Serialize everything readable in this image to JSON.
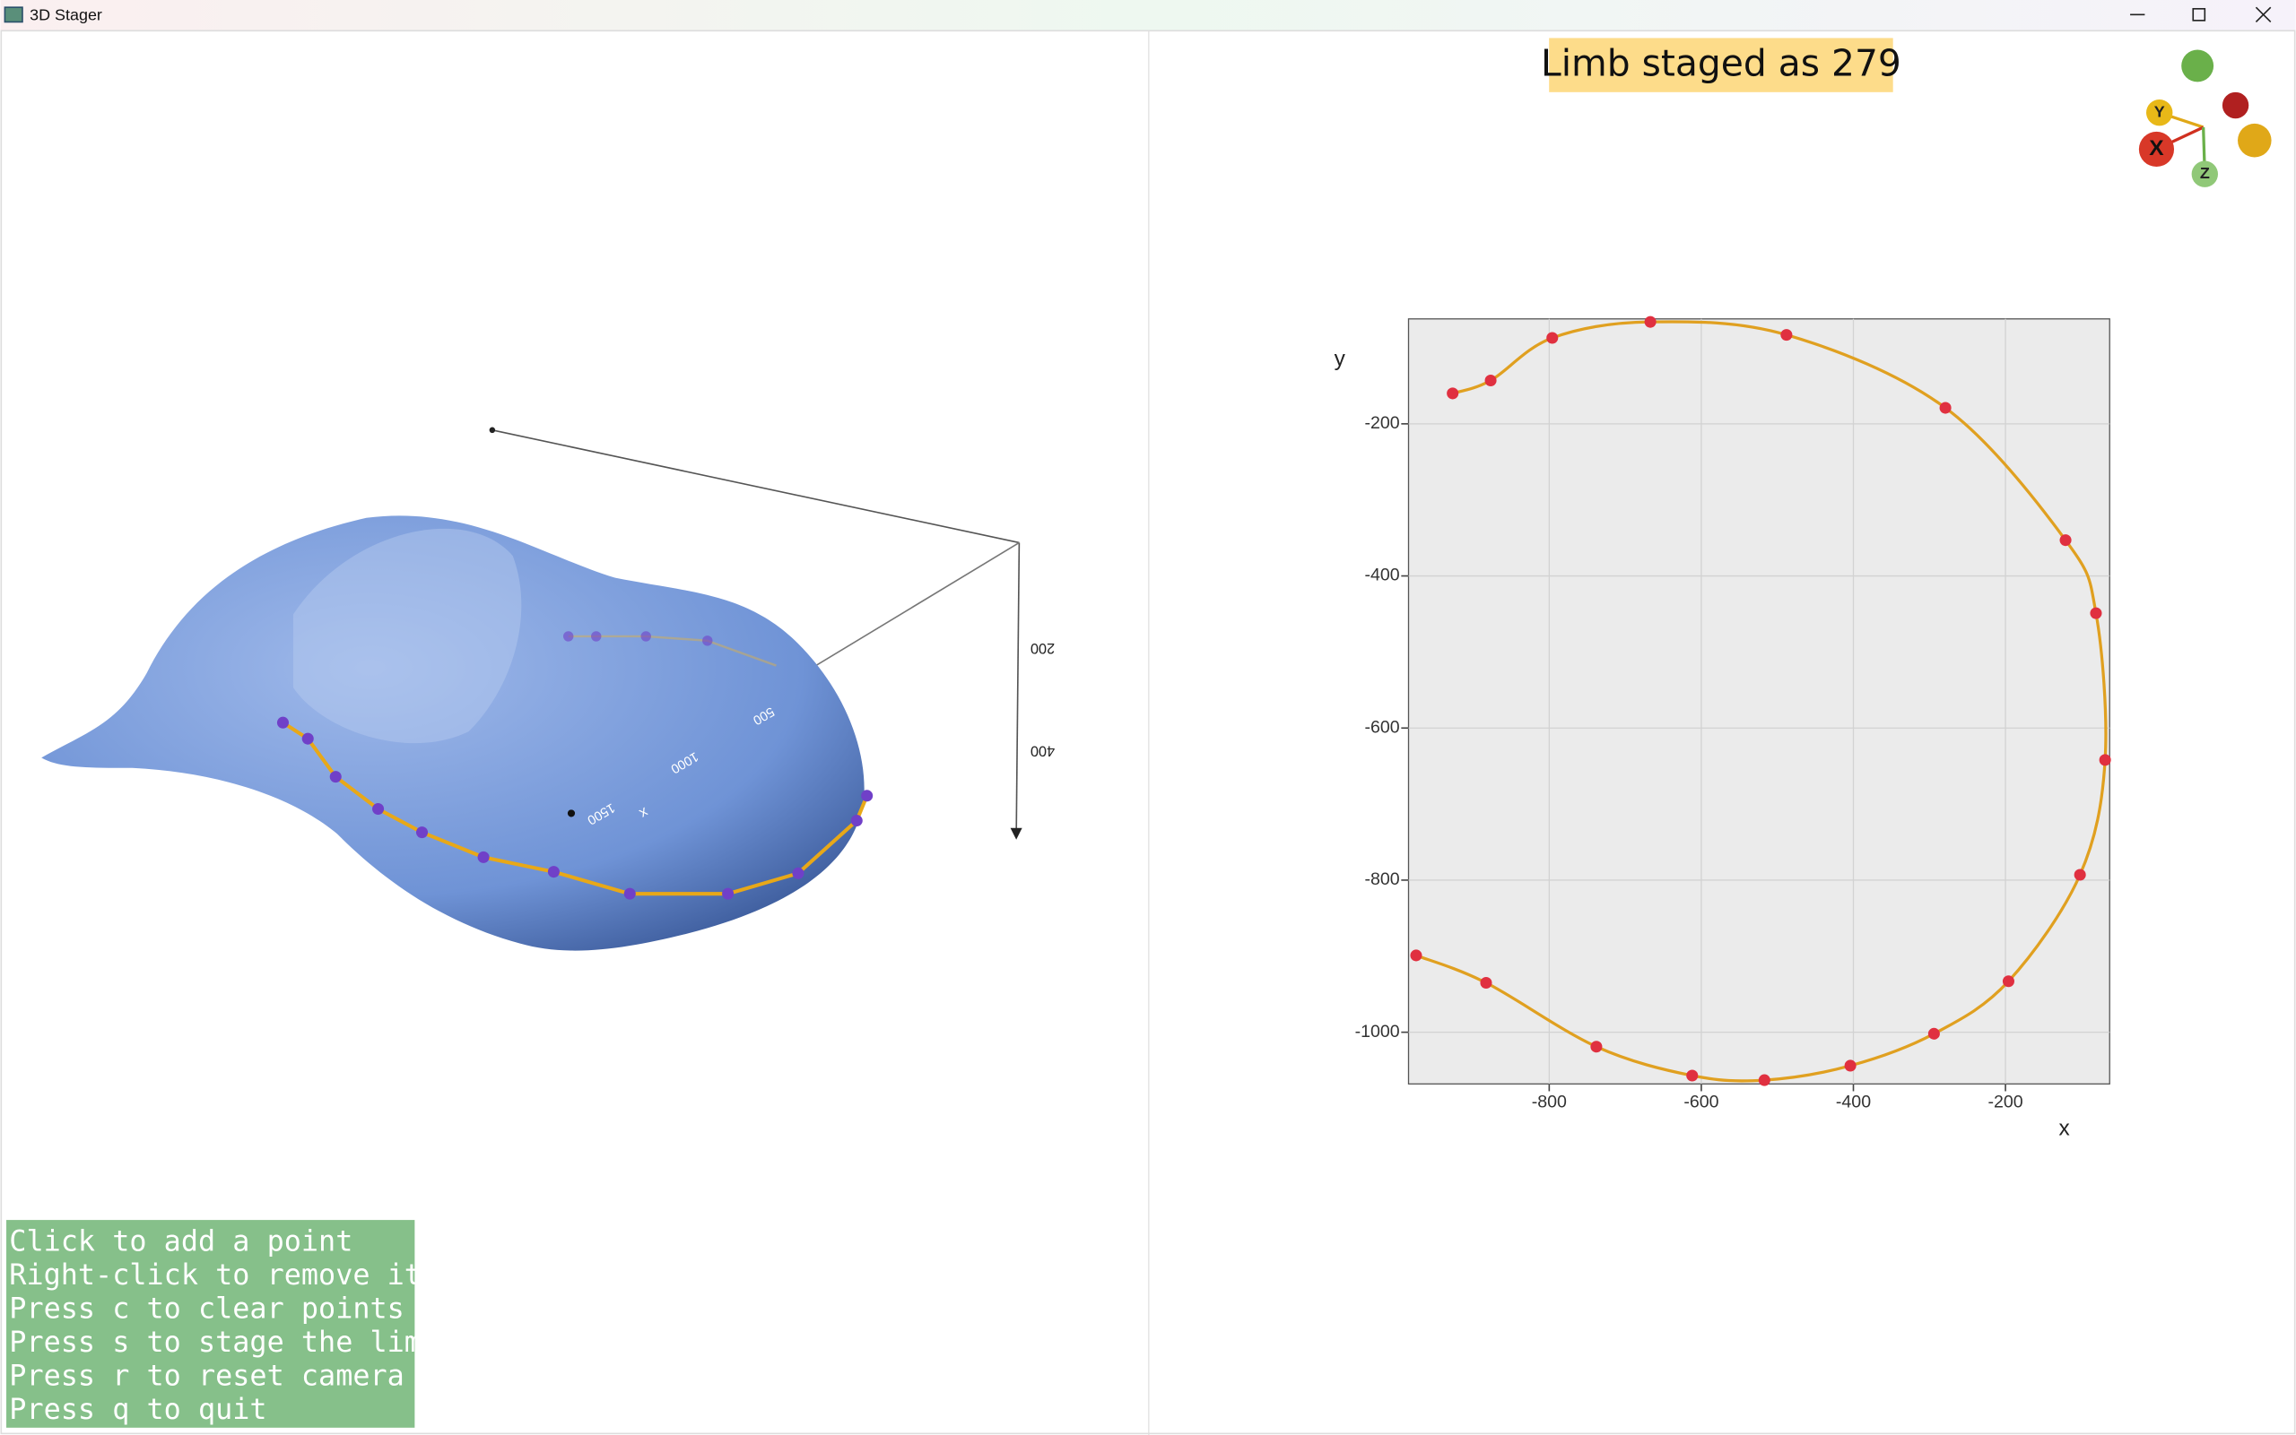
{
  "window": {
    "title": "3D Stager"
  },
  "status": {
    "label": "Limb staged as 279"
  },
  "instructions": [
    "Click to add a point",
    "Right-click to remove it",
    "Press c to clear points",
    "Press s to stage the limb",
    "Press r to reset camera",
    "Press q to quit"
  ],
  "viewer": {
    "axis_labels": [
      "200",
      "400",
      "500",
      "1000",
      "1500",
      "x"
    ]
  },
  "orientation": {
    "labels": [
      "Y",
      "X",
      "Z"
    ]
  },
  "chart_data": {
    "type": "line",
    "x": [
      -927,
      -877,
      -796,
      -667,
      -488,
      -279,
      -121,
      -81,
      -69,
      -102,
      -196,
      -294,
      -404,
      -517,
      -612,
      -738,
      -883,
      -975
    ],
    "y": [
      -160,
      -143,
      -87,
      -66,
      -83,
      -179,
      -353,
      -449,
      -642,
      -793,
      -933,
      -1002,
      -1044,
      -1063,
      -1057,
      -1019,
      -935,
      -899
    ],
    "color": "#e0a020",
    "point_color": "#e03040",
    "xlabel": "x",
    "ylabel": "y",
    "xlim": [
      -985,
      -63
    ],
    "ylim": [
      -1068,
      -62
    ],
    "xticks": [
      -800,
      -600,
      -400,
      -200
    ],
    "yticks": [
      -200,
      -400,
      -600,
      -800,
      -1000
    ],
    "grid": true
  }
}
